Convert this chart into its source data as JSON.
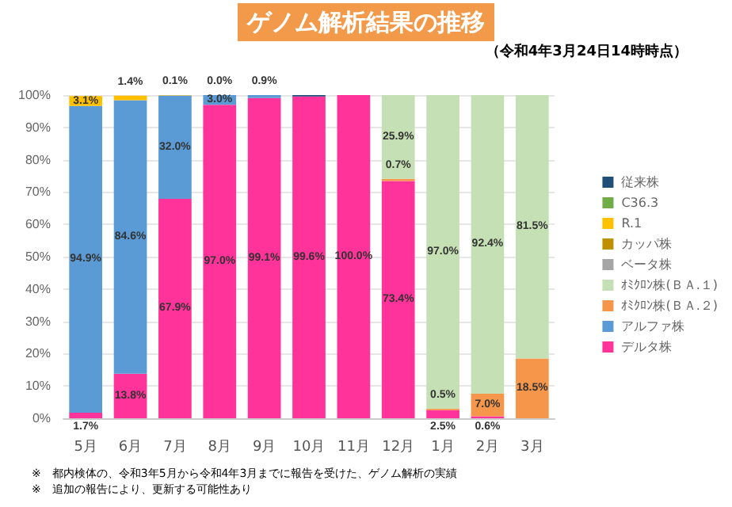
{
  "chart_data": {
    "type": "bar",
    "title": "ゲノム解析結果の推移",
    "subtitle": "（令和4年3月24日14時時点）",
    "categories": [
      "5月",
      "6月",
      "7月",
      "8月",
      "9月",
      "10月",
      "11月",
      "12月",
      "1月",
      "2月",
      "3月"
    ],
    "stacked": true,
    "series": [
      {
        "name": "デルタ株",
        "color": "#ff3399",
        "values": [
          1.7,
          13.8,
          67.9,
          97.0,
          99.1,
          99.6,
          100.0,
          73.4,
          2.5,
          0.6,
          null
        ],
        "value_labels": [
          "1.7%",
          "13.8%",
          "67.9%",
          "97.0%",
          "99.1%",
          "99.6%",
          "100.0%",
          "73.4%",
          "2.5%",
          "0.6%",
          null
        ]
      },
      {
        "name": "アルファ株",
        "color": "#5b9bd5",
        "values": [
          94.9,
          84.6,
          32.0,
          3.0,
          0.9,
          null,
          null,
          null,
          null,
          null,
          null
        ],
        "value_labels": [
          "94.9%",
          "84.6%",
          "32.0%",
          "3.0%",
          "0.9%",
          null,
          null,
          null,
          null,
          null,
          null
        ]
      },
      {
        "name": "ｵﾐｸﾛﾝ株(ＢＡ.２)",
        "color": "#f5964a",
        "values": [
          null,
          null,
          null,
          null,
          null,
          null,
          null,
          0.7,
          0.5,
          7.0,
          18.5
        ],
        "value_labels": [
          null,
          null,
          null,
          null,
          null,
          null,
          null,
          "0.7%",
          "0.5%",
          "7.0%",
          "18.5%"
        ]
      },
      {
        "name": "ｵﾐｸﾛﾝ株(ＢＡ.１)",
        "color": "#c5e0b4",
        "values": [
          null,
          null,
          null,
          null,
          null,
          null,
          null,
          25.9,
          97.0,
          92.4,
          81.5
        ],
        "value_labels": [
          null,
          null,
          null,
          null,
          null,
          null,
          null,
          "25.9%",
          "97.0%",
          "92.4%",
          "81.5%"
        ]
      },
      {
        "name": "ベータ株",
        "color": "#a5a5a5",
        "values": [
          null,
          null,
          null,
          null,
          null,
          null,
          null,
          null,
          null,
          null,
          null
        ]
      },
      {
        "name": "カッパ株",
        "color": "#bf9000",
        "values": [
          null,
          null,
          null,
          null,
          null,
          null,
          null,
          null,
          null,
          null,
          null
        ]
      },
      {
        "name": "R.1",
        "color": "#ffc000",
        "values": [
          3.1,
          1.4,
          0.1,
          null,
          null,
          null,
          null,
          null,
          null,
          null,
          null
        ],
        "value_labels": [
          "3.1%",
          "1.4%",
          "0.1%",
          null,
          null,
          null,
          null,
          null,
          null,
          null,
          null
        ]
      },
      {
        "name": "C36.3",
        "color": "#70ad47",
        "values": [
          null,
          null,
          null,
          null,
          null,
          null,
          null,
          null,
          null,
          null,
          null
        ]
      },
      {
        "name": "従来株",
        "color": "#1f4e79",
        "values": [
          null,
          null,
          null,
          0.0,
          null,
          0.4,
          null,
          null,
          null,
          null,
          null
        ],
        "value_labels": [
          null,
          null,
          null,
          "0.0%",
          null,
          null,
          null,
          null,
          null,
          null,
          null
        ]
      }
    ],
    "ylim": [
      0,
      100
    ],
    "yticks": [
      {
        "value": 0,
        "label": "0%"
      },
      {
        "value": 10,
        "label": "10%"
      },
      {
        "value": 20,
        "label": "20%"
      },
      {
        "value": 30,
        "label": "30%"
      },
      {
        "value": 40,
        "label": "40%"
      },
      {
        "value": 50,
        "label": "50%"
      },
      {
        "value": 60,
        "label": "60%"
      },
      {
        "value": 70,
        "label": "70%"
      },
      {
        "value": 80,
        "label": "80%"
      },
      {
        "value": 90,
        "label": "90%"
      },
      {
        "value": 100,
        "label": "100%"
      }
    ],
    "grid": "y",
    "legend": "right",
    "annotations": [
      "※　都内検体の、令和3年5月から令和4年3月までに報告を受けた、ゲノム解析の実績",
      "※　追加の報告により、更新する可能性あり"
    ]
  }
}
